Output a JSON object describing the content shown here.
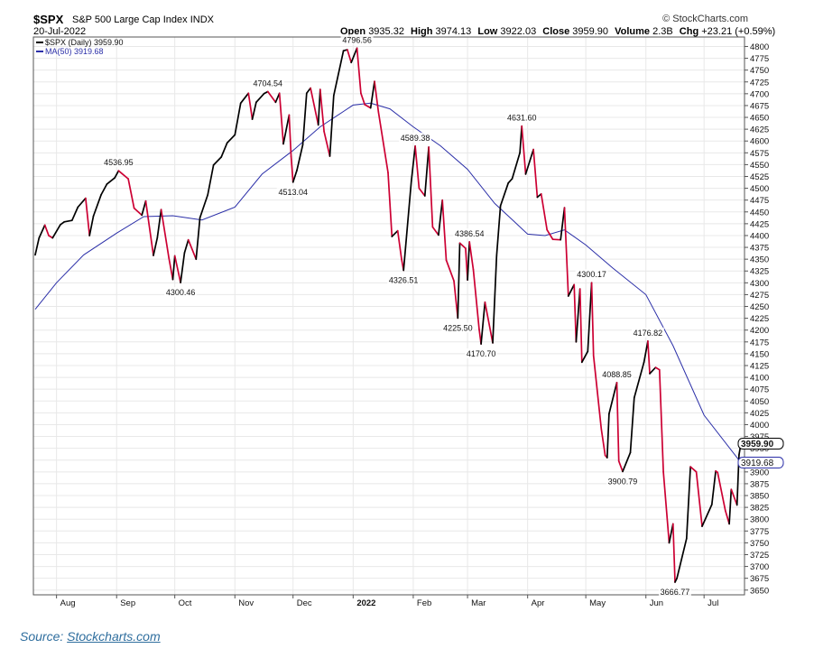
{
  "header": {
    "symbol": "$SPX",
    "name": "S&P 500 Large Cap Index",
    "exchange": "INDX",
    "brand": "© StockCharts.com",
    "date": "20-Jul-2022",
    "open_label": "Open",
    "open": "3935.32",
    "high_label": "High",
    "high": "3974.13",
    "low_label": "Low",
    "low": "3922.03",
    "close_label": "Close",
    "close": "3959.90",
    "volume_label": "Volume",
    "volume": "2.3B",
    "chg_label": "Chg",
    "chg": "+23.21 (+0.59%)"
  },
  "source": {
    "prefix": "Source:",
    "link": "Stockcharts.com"
  },
  "colors": {
    "up": "#000000",
    "down": "#cc0033",
    "ma": "#2b2fa8",
    "grid": "#e8e8e8",
    "axis": "#555555",
    "source": "#2f6e9e"
  },
  "chart_data": {
    "type": "line",
    "title": "$SPX S&P 500 Large Cap Index INDX",
    "x_range": [
      "2022-07-20 minus 12 months"
    ],
    "ylim": [
      3640,
      4820
    ],
    "y_scale": "linear",
    "y_ticks": [
      3650,
      3675,
      3700,
      3725,
      3750,
      3775,
      3800,
      3825,
      3850,
      3875,
      3900,
      3925,
      3950,
      3975,
      4000,
      4025,
      4050,
      4075,
      4100,
      4125,
      4150,
      4175,
      4200,
      4225,
      4250,
      4275,
      4300,
      4325,
      4350,
      4375,
      4400,
      4425,
      4450,
      4475,
      4500,
      4525,
      4550,
      4575,
      4600,
      4625,
      4650,
      4675,
      4700,
      4725,
      4750,
      4775,
      4800
    ],
    "x_ticks": [
      {
        "label": "Aug",
        "x": "2021-08"
      },
      {
        "label": "Sep",
        "x": "2021-09"
      },
      {
        "label": "Oct",
        "x": "2021-10"
      },
      {
        "label": "Nov",
        "x": "2021-11"
      },
      {
        "label": "Dec",
        "x": "2021-12"
      },
      {
        "label": "2022",
        "x": "2022-01"
      },
      {
        "label": "Feb",
        "x": "2022-02"
      },
      {
        "label": "Mar",
        "x": "2022-03"
      },
      {
        "label": "Apr",
        "x": "2022-04"
      },
      {
        "label": "May",
        "x": "2022-05"
      },
      {
        "label": "Jun",
        "x": "2022-06"
      },
      {
        "label": "Jul",
        "x": "2022-07"
      }
    ],
    "grid": true,
    "legend_placement": "top-left",
    "legend": [
      {
        "label": "$SPX (Daily) 3959.90",
        "color": "#000000"
      },
      {
        "label": "MA(50) 3919.68",
        "color": "#2b2fa8"
      }
    ],
    "series": [
      {
        "name": "$SPX (Daily)",
        "points": [
          [
            "2021-07-21",
            4359
          ],
          [
            "2021-07-23",
            4395
          ],
          [
            "2021-07-26",
            4422
          ],
          [
            "2021-07-28",
            4400
          ],
          [
            "2021-07-30",
            4395
          ],
          [
            "2021-08-03",
            4423
          ],
          [
            "2021-08-05",
            4429
          ],
          [
            "2021-08-09",
            4432
          ],
          [
            "2021-08-12",
            4460
          ],
          [
            "2021-08-16",
            4479
          ],
          [
            "2021-08-18",
            4400
          ],
          [
            "2021-08-20",
            4441
          ],
          [
            "2021-08-24",
            4486
          ],
          [
            "2021-08-27",
            4509
          ],
          [
            "2021-08-31",
            4522
          ],
          [
            "2021-09-02",
            4536.95
          ],
          [
            "2021-09-07",
            4520
          ],
          [
            "2021-09-10",
            4458
          ],
          [
            "2021-09-14",
            4443
          ],
          [
            "2021-09-16",
            4473
          ],
          [
            "2021-09-20",
            4358
          ],
          [
            "2021-09-22",
            4395
          ],
          [
            "2021-09-24",
            4455
          ],
          [
            "2021-09-28",
            4352
          ],
          [
            "2021-09-30",
            4307
          ],
          [
            "2021-10-01",
            4357
          ],
          [
            "2021-10-04",
            4300.46
          ],
          [
            "2021-10-06",
            4363
          ],
          [
            "2021-10-08",
            4391
          ],
          [
            "2021-10-12",
            4350
          ],
          [
            "2021-10-14",
            4438
          ],
          [
            "2021-10-18",
            4486
          ],
          [
            "2021-10-21",
            4549
          ],
          [
            "2021-10-25",
            4566
          ],
          [
            "2021-10-28",
            4596
          ],
          [
            "2021-11-01",
            4613
          ],
          [
            "2021-11-04",
            4680
          ],
          [
            "2021-11-08",
            4701
          ],
          [
            "2021-11-10",
            4646
          ],
          [
            "2021-11-12",
            4682
          ],
          [
            "2021-11-16",
            4700
          ],
          [
            "2021-11-18",
            4704.54
          ],
          [
            "2021-11-22",
            4682
          ],
          [
            "2021-11-24",
            4701
          ],
          [
            "2021-11-26",
            4594
          ],
          [
            "2021-11-29",
            4655
          ],
          [
            "2021-11-30",
            4567
          ],
          [
            "2021-12-01",
            4513.04
          ],
          [
            "2021-12-03",
            4538
          ],
          [
            "2021-12-06",
            4592
          ],
          [
            "2021-12-08",
            4701
          ],
          [
            "2021-12-10",
            4712
          ],
          [
            "2021-12-14",
            4634
          ],
          [
            "2021-12-15",
            4709
          ],
          [
            "2021-12-17",
            4620
          ],
          [
            "2021-12-20",
            4568
          ],
          [
            "2021-12-22",
            4696
          ],
          [
            "2021-12-27",
            4791
          ],
          [
            "2021-12-29",
            4793
          ],
          [
            "2021-12-31",
            4766
          ],
          [
            "2022-01-03",
            4796.56
          ],
          [
            "2022-01-05",
            4701
          ],
          [
            "2022-01-07",
            4677
          ],
          [
            "2022-01-10",
            4670
          ],
          [
            "2022-01-12",
            4726
          ],
          [
            "2022-01-14",
            4662
          ],
          [
            "2022-01-19",
            4533
          ],
          [
            "2022-01-21",
            4398
          ],
          [
            "2022-01-24",
            4410
          ],
          [
            "2022-01-26",
            4350
          ],
          [
            "2022-01-27",
            4326.51
          ],
          [
            "2022-01-31",
            4515
          ],
          [
            "2022-02-02",
            4589.38
          ],
          [
            "2022-02-04",
            4500
          ],
          [
            "2022-02-07",
            4484
          ],
          [
            "2022-02-09",
            4587
          ],
          [
            "2022-02-11",
            4418
          ],
          [
            "2022-02-14",
            4401
          ],
          [
            "2022-02-16",
            4475
          ],
          [
            "2022-02-18",
            4348
          ],
          [
            "2022-02-22",
            4304
          ],
          [
            "2022-02-24",
            4225.5
          ],
          [
            "2022-02-25",
            4384
          ],
          [
            "2022-02-28",
            4373
          ],
          [
            "2022-03-01",
            4306
          ],
          [
            "2022-03-02",
            4386.54
          ],
          [
            "2022-03-04",
            4328
          ],
          [
            "2022-03-07",
            4201
          ],
          [
            "2022-03-08",
            4170.7
          ],
          [
            "2022-03-10",
            4259
          ],
          [
            "2022-03-14",
            4173
          ],
          [
            "2022-03-16",
            4357
          ],
          [
            "2022-03-18",
            4463
          ],
          [
            "2022-03-22",
            4511
          ],
          [
            "2022-03-24",
            4520
          ],
          [
            "2022-03-28",
            4575
          ],
          [
            "2022-03-29",
            4631.6
          ],
          [
            "2022-03-31",
            4530
          ],
          [
            "2022-04-04",
            4582
          ],
          [
            "2022-04-06",
            4481
          ],
          [
            "2022-04-08",
            4488
          ],
          [
            "2022-04-11",
            4412
          ],
          [
            "2022-04-14",
            4392
          ],
          [
            "2022-04-18",
            4391
          ],
          [
            "2022-04-20",
            4459
          ],
          [
            "2022-04-22",
            4272
          ],
          [
            "2022-04-25",
            4296
          ],
          [
            "2022-04-26",
            4175
          ],
          [
            "2022-04-28",
            4287
          ],
          [
            "2022-04-29",
            4132
          ],
          [
            "2022-05-02",
            4155
          ],
          [
            "2022-05-04",
            4300.17
          ],
          [
            "2022-05-05",
            4146
          ],
          [
            "2022-05-09",
            3991
          ],
          [
            "2022-05-11",
            3935
          ],
          [
            "2022-05-12",
            3930
          ],
          [
            "2022-05-13",
            4023
          ],
          [
            "2022-05-17",
            4088.85
          ],
          [
            "2022-05-18",
            3923
          ],
          [
            "2022-05-20",
            3900.79
          ],
          [
            "2022-05-24",
            3941
          ],
          [
            "2022-05-26",
            4057
          ],
          [
            "2022-05-31",
            4132
          ],
          [
            "2022-06-02",
            4176.82
          ],
          [
            "2022-06-03",
            4108
          ],
          [
            "2022-06-06",
            4121
          ],
          [
            "2022-06-08",
            4116
          ],
          [
            "2022-06-10",
            3900
          ],
          [
            "2022-06-13",
            3750
          ],
          [
            "2022-06-15",
            3790
          ],
          [
            "2022-06-16",
            3666.77
          ],
          [
            "2022-06-17",
            3675
          ],
          [
            "2022-06-22",
            3759
          ],
          [
            "2022-06-24",
            3911
          ],
          [
            "2022-06-27",
            3900
          ],
          [
            "2022-06-30",
            3785
          ],
          [
            "2022-07-05",
            3831
          ],
          [
            "2022-07-07",
            3902
          ],
          [
            "2022-07-08",
            3899
          ],
          [
            "2022-07-12",
            3818
          ],
          [
            "2022-07-14",
            3790
          ],
          [
            "2022-07-15",
            3863
          ],
          [
            "2022-07-18",
            3830
          ],
          [
            "2022-07-19",
            3936
          ],
          [
            "2022-07-20",
            3959.9
          ]
        ]
      },
      {
        "name": "MA(50)",
        "points": [
          [
            "2021-07-21",
            4244
          ],
          [
            "2021-08-01",
            4300
          ],
          [
            "2021-08-15",
            4359
          ],
          [
            "2021-09-01",
            4405
          ],
          [
            "2021-09-15",
            4440
          ],
          [
            "2021-09-30",
            4442
          ],
          [
            "2021-10-15",
            4433
          ],
          [
            "2021-11-01",
            4460
          ],
          [
            "2021-11-15",
            4530
          ],
          [
            "2021-12-01",
            4580
          ],
          [
            "2021-12-15",
            4630
          ],
          [
            "2022-01-01",
            4676
          ],
          [
            "2022-01-10",
            4680
          ],
          [
            "2022-01-20",
            4668
          ],
          [
            "2022-02-01",
            4630
          ],
          [
            "2022-02-15",
            4590
          ],
          [
            "2022-03-01",
            4540
          ],
          [
            "2022-03-15",
            4468
          ],
          [
            "2022-03-25",
            4430
          ],
          [
            "2022-04-01",
            4403
          ],
          [
            "2022-04-10",
            4400
          ],
          [
            "2022-04-20",
            4412
          ],
          [
            "2022-05-01",
            4380
          ],
          [
            "2022-05-15",
            4331
          ],
          [
            "2022-06-01",
            4275
          ],
          [
            "2022-06-15",
            4167
          ],
          [
            "2022-07-01",
            4020
          ],
          [
            "2022-07-20",
            3919.68
          ]
        ]
      }
    ],
    "annotations": [
      {
        "x": "2021-09-02",
        "y": 4536.95,
        "text": "4536.95",
        "pos": "above"
      },
      {
        "x": "2021-10-04",
        "y": 4300.46,
        "text": "4300.46",
        "pos": "below"
      },
      {
        "x": "2021-11-18",
        "y": 4704.54,
        "text": "4704.54",
        "pos": "above"
      },
      {
        "x": "2021-12-01",
        "y": 4513.04,
        "text": "4513.04",
        "pos": "below"
      },
      {
        "x": "2022-01-03",
        "y": 4796.56,
        "text": "4796.56",
        "pos": "above"
      },
      {
        "x": "2022-01-27",
        "y": 4326.51,
        "text": "4326.51",
        "pos": "below"
      },
      {
        "x": "2022-02-02",
        "y": 4589.38,
        "text": "4589.38",
        "pos": "above"
      },
      {
        "x": "2022-02-24",
        "y": 4225.5,
        "text": "4225.50",
        "pos": "below"
      },
      {
        "x": "2022-03-02",
        "y": 4386.54,
        "text": "4386.54",
        "pos": "above"
      },
      {
        "x": "2022-03-08",
        "y": 4170.7,
        "text": "4170.70",
        "pos": "below"
      },
      {
        "x": "2022-03-29",
        "y": 4631.6,
        "text": "4631.60",
        "pos": "above"
      },
      {
        "x": "2022-05-04",
        "y": 4300.17,
        "text": "4300.17",
        "pos": "above"
      },
      {
        "x": "2022-05-17",
        "y": 4088.85,
        "text": "4088.85",
        "pos": "above"
      },
      {
        "x": "2022-05-20",
        "y": 3900.79,
        "text": "3900.79",
        "pos": "below"
      },
      {
        "x": "2022-06-02",
        "y": 4176.82,
        "text": "4176.82",
        "pos": "above"
      },
      {
        "x": "2022-06-16",
        "y": 3666.77,
        "text": "3666.77",
        "pos": "below"
      }
    ],
    "last_value_badges": [
      {
        "value": 3959.9,
        "text": "3959.90",
        "bold": true
      },
      {
        "value": 3919.68,
        "text": "3919.68",
        "bold": false,
        "color": "#2b2fa8"
      }
    ]
  }
}
